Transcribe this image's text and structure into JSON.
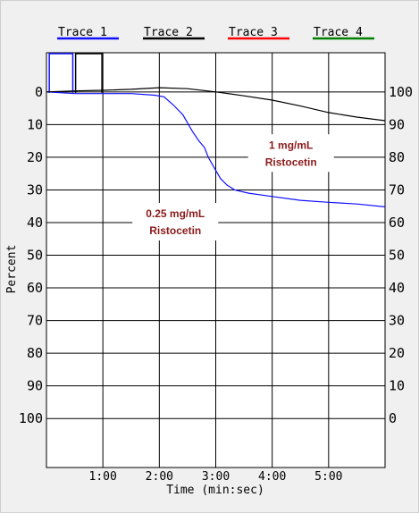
{
  "legend": [
    {
      "label": "Trace 1",
      "color": "#1010ff"
    },
    {
      "label": "Trace 2",
      "color": "#000000"
    },
    {
      "label": "Trace 3",
      "color": "#ff0000"
    },
    {
      "label": "Trace 4",
      "color": "#008000"
    }
  ],
  "chart_data": {
    "type": "line",
    "xlabel": "Time (min:sec)",
    "ylabel": "Percent",
    "x_unit": "seconds",
    "xlim": [
      0,
      360
    ],
    "x_ticks": [
      {
        "value": 60,
        "label": "1:00"
      },
      {
        "value": 120,
        "label": "2:00"
      },
      {
        "value": 180,
        "label": "3:00"
      },
      {
        "value": 240,
        "label": "4:00"
      },
      {
        "value": 300,
        "label": "5:00"
      }
    ],
    "ylim_left": [
      -12,
      115
    ],
    "y_left_inverted": true,
    "y_left_ticks": [
      0,
      10,
      20,
      30,
      40,
      50,
      60,
      70,
      80,
      90,
      100
    ],
    "y_right_ticks": [
      100,
      90,
      80,
      70,
      60,
      50,
      40,
      30,
      20,
      10,
      0
    ],
    "grid": true,
    "legend_position": "top",
    "series": [
      {
        "name": "Trace 1",
        "color": "#1010ff",
        "points": [
          [
            0,
            0
          ],
          [
            30,
            0.5
          ],
          [
            60,
            0.5
          ],
          [
            90,
            0.5
          ],
          [
            115,
            1
          ],
          [
            125,
            1.5
          ],
          [
            135,
            4
          ],
          [
            145,
            7
          ],
          [
            155,
            12
          ],
          [
            162,
            15
          ],
          [
            168,
            17
          ],
          [
            172,
            20
          ],
          [
            178,
            23
          ],
          [
            185,
            26.5
          ],
          [
            192,
            28.5
          ],
          [
            200,
            30
          ],
          [
            215,
            31
          ],
          [
            240,
            32
          ],
          [
            270,
            33.2
          ],
          [
            300,
            33.8
          ],
          [
            330,
            34.3
          ],
          [
            360,
            35.2
          ]
        ],
        "start_pulse": {
          "x_from": 3,
          "x_to": 28,
          "y_top": -12
        }
      },
      {
        "name": "Trace 2",
        "color": "#000000",
        "points": [
          [
            0,
            0
          ],
          [
            30,
            -0.3
          ],
          [
            60,
            -0.5
          ],
          [
            90,
            -0.8
          ],
          [
            120,
            -1.3
          ],
          [
            150,
            -1
          ],
          [
            180,
            0
          ],
          [
            210,
            1.2
          ],
          [
            240,
            2.5
          ],
          [
            270,
            4.3
          ],
          [
            300,
            6.3
          ],
          [
            330,
            7.7
          ],
          [
            360,
            8.8
          ]
        ],
        "start_pulse": {
          "x_from": 31,
          "x_to": 59,
          "y_top": -12
        }
      }
    ],
    "annotations": [
      {
        "id": "low",
        "lines": [
          "0.25 mg/mL",
          "Ristocetin"
        ],
        "color": "#8b1a1a",
        "x": 137,
        "y": 40
      },
      {
        "id": "high",
        "lines": [
          "1 mg/mL",
          "Ristocetin"
        ],
        "color": "#8b1a1a",
        "x": 260,
        "y": 19
      }
    ]
  }
}
